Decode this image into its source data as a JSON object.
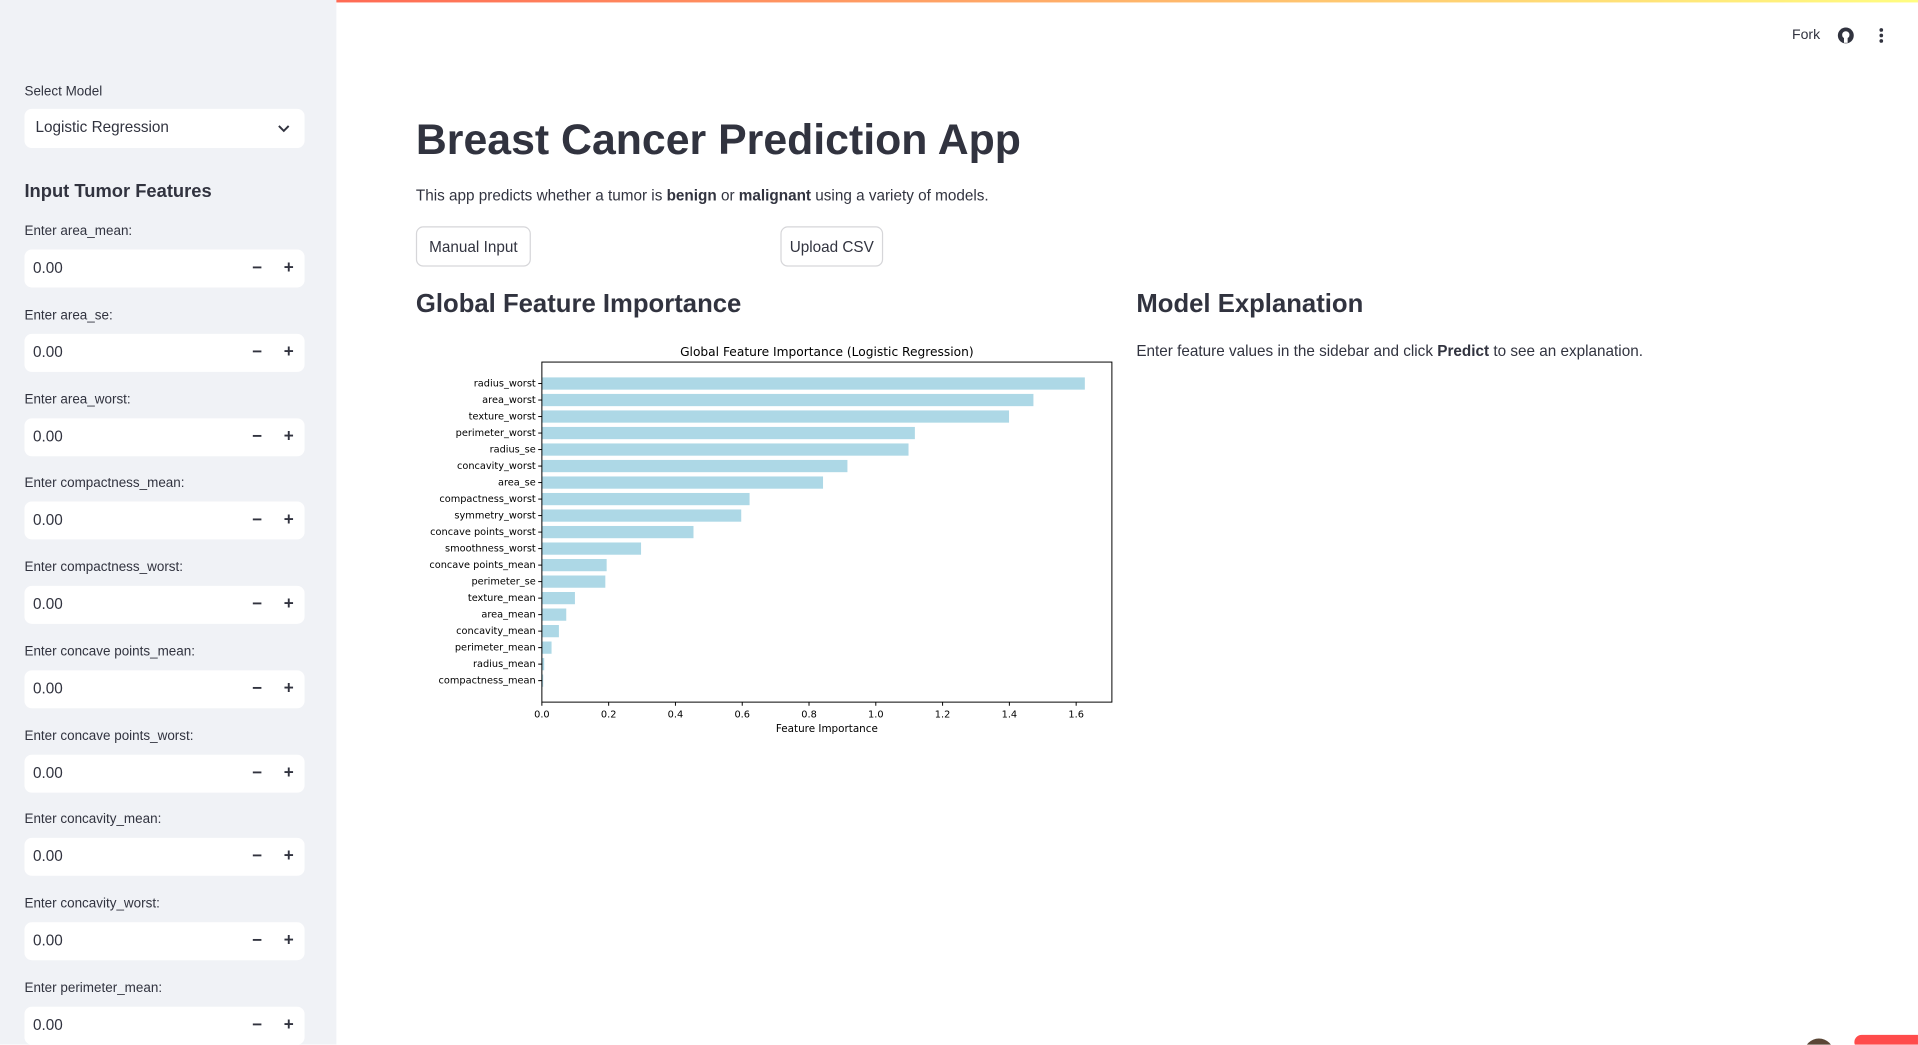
{
  "toolbar": {
    "fork": "Fork"
  },
  "sidebar": {
    "select_label": "Select Model",
    "select_value": "Logistic Regression",
    "section_title": "Input Tumor Features",
    "decrement": "−",
    "increment": "+",
    "inputs": [
      {
        "label": "Enter area_mean:",
        "value": "0.00"
      },
      {
        "label": "Enter area_se:",
        "value": "0.00"
      },
      {
        "label": "Enter area_worst:",
        "value": "0.00"
      },
      {
        "label": "Enter compactness_mean:",
        "value": "0.00"
      },
      {
        "label": "Enter compactness_worst:",
        "value": "0.00"
      },
      {
        "label": "Enter concave points_mean:",
        "value": "0.00"
      },
      {
        "label": "Enter concave points_worst:",
        "value": "0.00"
      },
      {
        "label": "Enter concavity_mean:",
        "value": "0.00"
      },
      {
        "label": "Enter concavity_worst:",
        "value": "0.00"
      },
      {
        "label": "Enter perimeter_mean:",
        "value": "0.00"
      }
    ]
  },
  "main": {
    "title": "Breast Cancer Prediction App",
    "intro": [
      "This app predicts whether a tumor is ",
      "benign",
      " or ",
      "malignant",
      " using a variety of models."
    ],
    "buttons": [
      "Manual Input",
      "Upload CSV"
    ],
    "importance_heading": "Global Feature Importance",
    "explanation_heading": "Model Explanation",
    "explanation_text": [
      "Enter feature values in the sidebar and click ",
      "Predict",
      " to see an explanation."
    ]
  },
  "chart_data": {
    "type": "barh",
    "title": "Global Feature Importance (Logistic Regression)",
    "x_label": "Feature Importance",
    "categories": [
      "radius_worst",
      "area_worst",
      "texture_worst",
      "perimeter_worst",
      "radius_se",
      "concavity_worst",
      "area_se",
      "compactness_worst",
      "symmetry_worst",
      "concave points_worst",
      "smoothness_worst",
      "concave points_mean",
      "perimeter_se",
      "texture_mean",
      "area_mean",
      "concavity_mean",
      "perimeter_mean",
      "radius_mean",
      "compactness_mean"
    ],
    "values": [
      1.626,
      1.472,
      1.399,
      1.117,
      1.098,
      0.915,
      0.842,
      0.622,
      0.597,
      0.454,
      0.297,
      0.194,
      0.19,
      0.099,
      0.073,
      0.051,
      0.029,
      0.007,
      0.004
    ],
    "color": "#add8e6",
    "xlim": [
      0,
      1.707
    ],
    "xticks": [
      {
        "value": 0,
        "label": "0.0"
      },
      {
        "value": 0.2,
        "label": "0.2"
      },
      {
        "value": 0.4,
        "label": "0.4"
      },
      {
        "value": 0.6,
        "label": "0.6"
      },
      {
        "value": 0.8,
        "label": "0.8"
      },
      {
        "value": 1,
        "label": "1.0"
      },
      {
        "value": 1.2,
        "label": "1.2"
      },
      {
        "value": 1.4,
        "label": "1.4"
      },
      {
        "value": 1.6,
        "label": "1.6"
      }
    ]
  }
}
